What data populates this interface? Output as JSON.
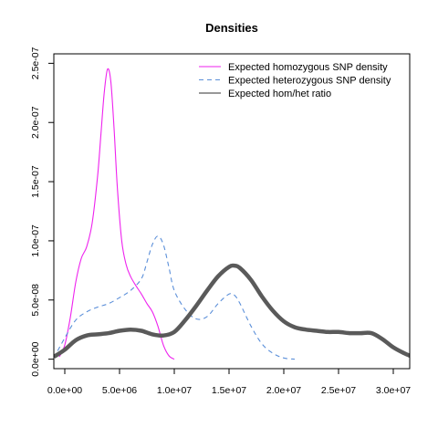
{
  "chart_data": {
    "type": "line",
    "title": "Densities",
    "xlabel": "",
    "ylabel": "",
    "xlim": [
      -1000000,
      31500000
    ],
    "ylim": [
      -8e-09,
      2.58e-07
    ],
    "x_ticks": [
      0,
      5000000,
      10000000,
      15000000,
      20000000,
      25000000,
      30000000
    ],
    "x_tick_labels": [
      "0.0e+00",
      "5.0e+06",
      "1.0e+07",
      "1.5e+07",
      "2.0e+07",
      "2.5e+07",
      "3.0e+07"
    ],
    "y_ticks": [
      0,
      5e-08,
      1e-07,
      1.5e-07,
      2e-07,
      2.5e-07
    ],
    "y_tick_labels": [
      "0.0e+00",
      "5.0e-08",
      "1.0e-07",
      "1.5e-07",
      "2.0e-07",
      "2.5e-07"
    ],
    "legend_position": "top-right",
    "series": [
      {
        "name": "Expected homozygous SNP density",
        "color": "#ee22ee",
        "line_style": "solid",
        "line_width": "thin",
        "x": [
          -500000,
          0,
          500000,
          1000000,
          1500000,
          2000000,
          2500000,
          3000000,
          3300000,
          3600000,
          3900000,
          4200000,
          4500000,
          4800000,
          5200000,
          5600000,
          6000000,
          6500000,
          7000000,
          7500000,
          8000000,
          8500000,
          9000000,
          9500000,
          10000000
        ],
        "y": [
          2e-09,
          1.2e-08,
          3.5e-08,
          6.5e-08,
          8.5e-08,
          9.5e-08,
          1.15e-07,
          1.55e-07,
          1.9e-07,
          2.25e-07,
          2.45e-07,
          2.35e-07,
          1.95e-07,
          1.45e-07,
          1e-07,
          8e-08,
          7e-08,
          6.2e-08,
          5.5e-08,
          4.7e-08,
          4e-08,
          2.8e-08,
          1.2e-08,
          3e-09,
          0.0
        ]
      },
      {
        "name": "Expected heterozygous SNP density",
        "color": "#5b8fd9",
        "line_style": "dashed",
        "line_width": "thin",
        "x": [
          -1000000,
          0,
          1000000,
          2000000,
          3000000,
          4000000,
          5000000,
          6000000,
          7000000,
          7500000,
          8000000,
          8500000,
          9000000,
          9500000,
          10000000,
          11000000,
          12000000,
          13000000,
          14000000,
          15000000,
          15500000,
          16000000,
          17000000,
          18000000,
          19000000,
          20000000,
          21000000
        ],
        "y": [
          1e-09,
          1.8e-08,
          3.3e-08,
          4e-08,
          4.4e-08,
          4.7e-08,
          5.2e-08,
          5.8e-08,
          6.8e-08,
          8.2e-08,
          9.7e-08,
          1.04e-07,
          9.7e-08,
          7.8e-08,
          5.8e-08,
          4.2e-08,
          3.4e-08,
          3.6e-08,
          4.7e-08,
          5.5e-08,
          5.4e-08,
          4.7e-08,
          2.8e-08,
          1.3e-08,
          5e-09,
          1e-09,
          0.0
        ]
      },
      {
        "name": "Expected hom/het ratio",
        "color": "#5a5a5a",
        "line_style": "solid",
        "line_width": "thick",
        "x": [
          -1000000,
          0,
          1000000,
          2000000,
          3000000,
          4000000,
          5000000,
          6000000,
          7000000,
          8000000,
          9000000,
          10000000,
          11000000,
          12000000,
          13000000,
          14000000,
          15000000,
          15500000,
          16000000,
          17000000,
          18000000,
          19000000,
          20000000,
          21000000,
          22000000,
          23000000,
          24000000,
          25000000,
          26000000,
          27000000,
          28000000,
          29000000,
          30000000,
          31000000,
          32000000
        ],
        "y": [
          2e-09,
          8e-09,
          1.6e-08,
          2e-08,
          2.1e-08,
          2.2e-08,
          2.4e-08,
          2.5e-08,
          2.4e-08,
          2.1e-08,
          2e-08,
          2.3e-08,
          3.3e-08,
          4.5e-08,
          5.8e-08,
          7e-08,
          7.8e-08,
          7.9e-08,
          7.7e-08,
          6.7e-08,
          5.3e-08,
          4.1e-08,
          3.2e-08,
          2.7e-08,
          2.5e-08,
          2.4e-08,
          2.3e-08,
          2.3e-08,
          2.2e-08,
          2.2e-08,
          2.2e-08,
          1.7e-08,
          1e-08,
          5e-09,
          1e-09
        ]
      }
    ]
  }
}
